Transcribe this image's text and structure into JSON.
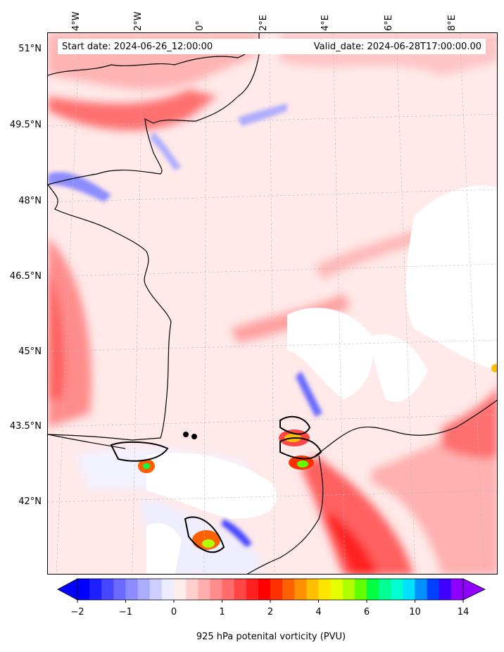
{
  "info": {
    "start_date": "Start date: 2024-06-26_12:00:00",
    "valid_date": "Valid_date: 2024-06-28T17:00:00.00"
  },
  "map": {
    "region": "France and surroundings",
    "latitude_labels": [
      "51°N",
      "49.5°N",
      "48°N",
      "46.5°N",
      "45°N",
      "43.5°N",
      "42°N"
    ],
    "longitude_labels": [
      "4°W",
      "2°W",
      "0°",
      "2°E",
      "4°E",
      "6°E",
      "8°E"
    ],
    "colors": {
      "coast": "#000000",
      "missing": "#ffffff",
      "grid": "#bbbbbb"
    }
  },
  "colorbar": {
    "title": "925 hPa potenital vorticity (PVU)",
    "tick_labels": [
      "−2",
      "−1",
      "0",
      "1",
      "2",
      "4",
      "6",
      "10",
      "14"
    ],
    "levels": [
      -2,
      -1.75,
      -1.5,
      -1.25,
      -1,
      -0.75,
      -0.5,
      -0.25,
      0,
      0.25,
      0.5,
      0.75,
      1,
      1.25,
      1.5,
      1.75,
      2,
      2.5,
      3,
      3.5,
      4,
      4.5,
      5,
      5.5,
      6,
      7,
      8,
      9,
      10,
      11,
      12,
      13,
      14
    ],
    "colors": [
      "#0000ff",
      "#2020ff",
      "#4646ff",
      "#6a6aff",
      "#8c8cff",
      "#adadff",
      "#cfcfff",
      "#ececff",
      "#ffecec",
      "#ffcfcf",
      "#ffadad",
      "#ff8c8c",
      "#ff6a6a",
      "#ff4646",
      "#ff2020",
      "#ff0000",
      "#ff3000",
      "#ff6000",
      "#ff9000",
      "#ffbf00",
      "#ffe600",
      "#e6ff00",
      "#b0ff00",
      "#60ff00",
      "#00ff40",
      "#00ff90",
      "#00ffd0",
      "#00e0ff",
      "#0090ff",
      "#0040ff",
      "#4000ff",
      "#9000ff"
    ]
  }
}
